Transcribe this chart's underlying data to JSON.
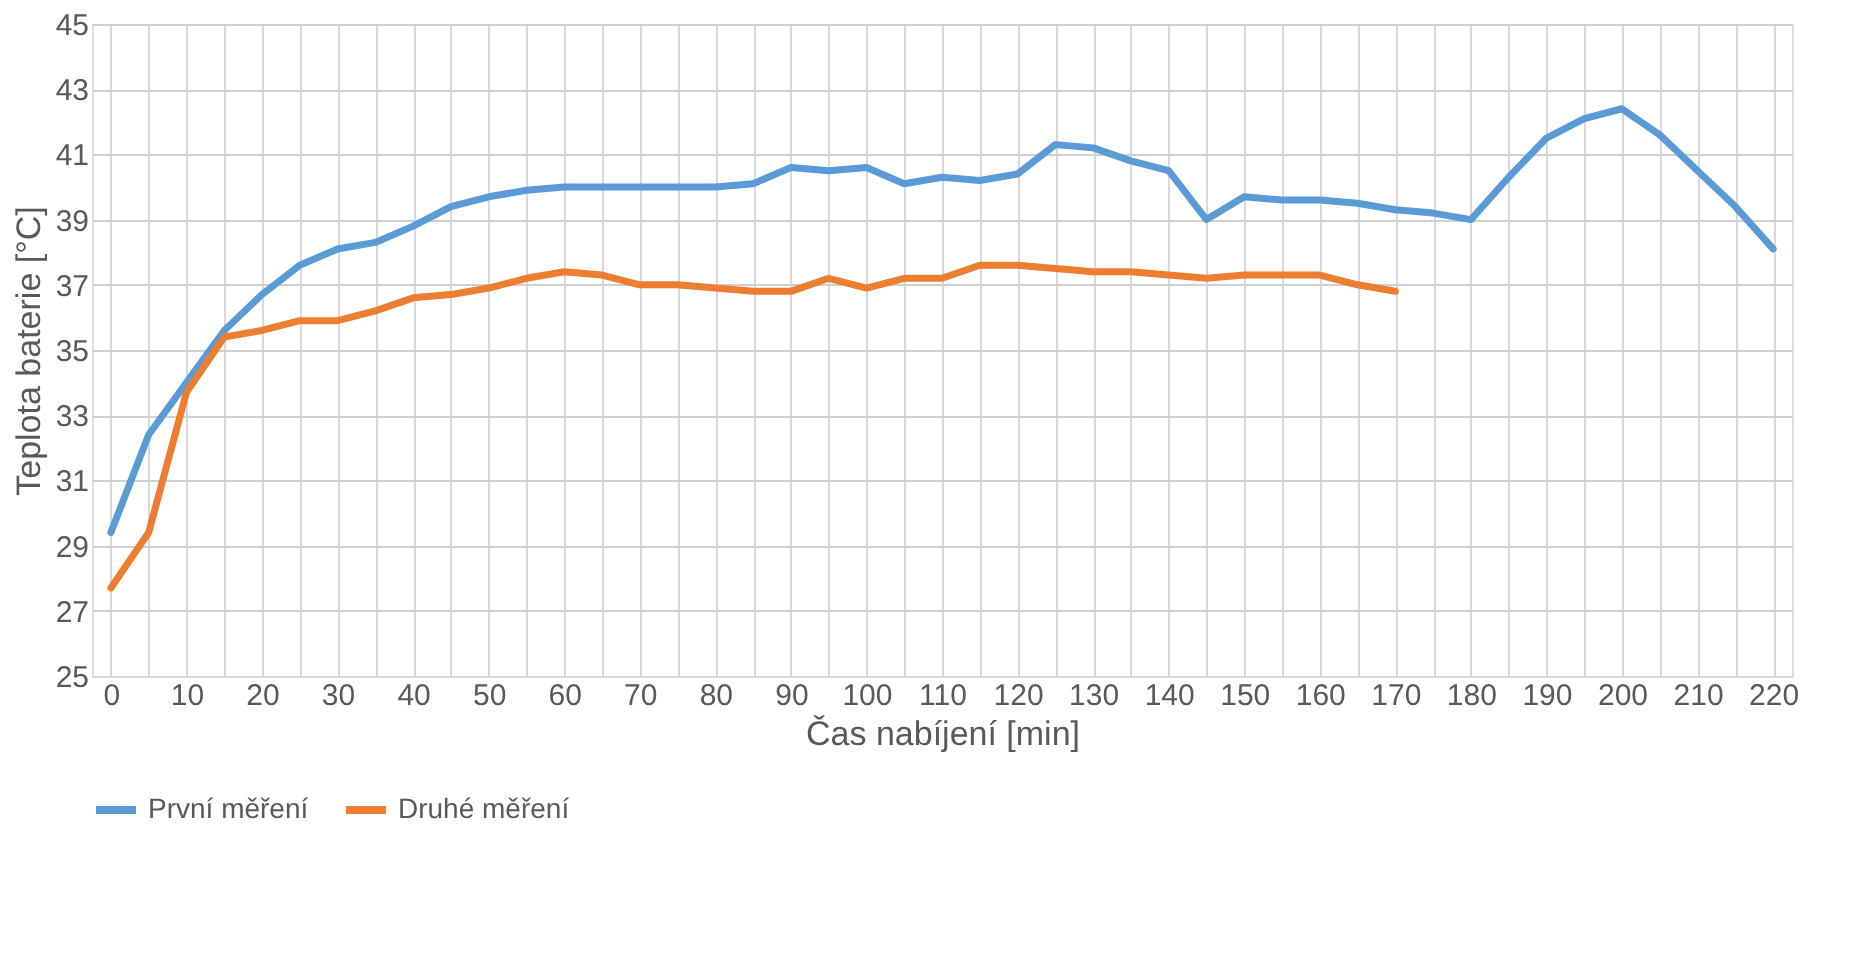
{
  "chart_data": {
    "type": "line",
    "xlabel": "Čas nabíjení [min]",
    "ylabel": "Teplota baterie [°C]",
    "categories": [
      "0",
      null,
      "10",
      null,
      "20",
      null,
      "30",
      null,
      "40",
      null,
      "50",
      null,
      "60",
      null,
      "70",
      null,
      "80",
      null,
      "90",
      null,
      "100",
      null,
      "110",
      null,
      "120",
      null,
      "130",
      null,
      "140",
      null,
      "150",
      null,
      "160",
      null,
      "170",
      null,
      "180",
      null,
      "190",
      null,
      "200",
      null,
      "210",
      null,
      "220"
    ],
    "series": [
      {
        "name": "První měření",
        "color": "#5b9bd5",
        "values": [
          29.4,
          32.4,
          34.0,
          35.6,
          36.7,
          37.6,
          38.1,
          38.3,
          38.8,
          39.4,
          39.7,
          39.9,
          40.0,
          40.0,
          40.0,
          40.0,
          40.0,
          40.1,
          40.6,
          40.5,
          40.6,
          40.1,
          40.3,
          40.2,
          40.4,
          41.3,
          41.2,
          40.8,
          40.5,
          39.0,
          39.7,
          39.6,
          39.6,
          39.5,
          39.3,
          39.2,
          39.0,
          40.3,
          41.5,
          42.1,
          42.4,
          41.6,
          40.5,
          39.4,
          38.1
        ]
      },
      {
        "name": "Druhé měření",
        "color": "#ed7d31",
        "values": [
          27.7,
          29.4,
          33.7,
          35.4,
          35.6,
          35.9,
          35.9,
          36.2,
          36.6,
          36.7,
          36.9,
          37.2,
          37.4,
          37.3,
          37.0,
          37.0,
          36.9,
          36.8,
          36.8,
          37.2,
          36.9,
          37.2,
          37.2,
          37.6,
          37.6,
          37.5,
          37.4,
          37.4,
          37.3,
          37.2,
          37.3,
          37.3,
          37.3,
          37.0,
          36.8,
          null,
          null,
          null,
          null,
          null,
          null,
          null,
          null,
          null,
          null
        ]
      }
    ],
    "ylim": [
      25,
      45
    ],
    "yticks": [
      25,
      27,
      29,
      31,
      33,
      35,
      37,
      39,
      41,
      43,
      45
    ],
    "grid": true,
    "legend": "bottom",
    "line_style": "solid",
    "marker": "none"
  }
}
